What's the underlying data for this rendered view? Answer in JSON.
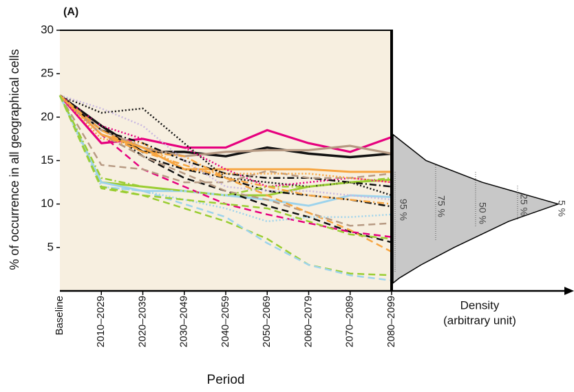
{
  "chart_data": {
    "type": "line",
    "title": "(A)",
    "y_label": "% of occurrence in all geographical cells",
    "x_label": "Period",
    "density_label": [
      "Density",
      "(arbitrary unit)"
    ],
    "density_percentiles": [
      "95 %",
      "75 %",
      "50 %",
      "25 %",
      "5 %"
    ],
    "categories": [
      "Baseline",
      "2010–2029",
      "2020–2039",
      "2030–2049",
      "2040–2059",
      "2050–2069",
      "2060–2079",
      "2070–2089",
      "2080–2099"
    ],
    "ylim": [
      0,
      30
    ],
    "yticks": [
      5,
      10,
      15,
      20,
      25,
      30
    ],
    "background": "#f7efe0",
    "density_y": [
      0.9,
      1.5,
      3,
      5,
      8,
      10,
      12.5,
      15,
      18
    ],
    "density": [
      0,
      0.04,
      0.17,
      0.37,
      0.7,
      1,
      0.54,
      0.2,
      0
    ],
    "density_color": "#c8c8c8",
    "series": [
      {
        "color": "#e6007e",
        "dash": "solid",
        "width": 3.2,
        "values": [
          22.5,
          17,
          17.5,
          16.5,
          16.5,
          18.5,
          17,
          16,
          17.7
        ]
      },
      {
        "color": "#111111",
        "dash": "solid",
        "width": 3.5,
        "values": [
          22.5,
          19,
          16,
          16,
          15.5,
          16.5,
          15.8,
          15.4,
          15.8
        ]
      },
      {
        "color": "#b79a83",
        "dash": "solid",
        "width": 3.2,
        "values": [
          22.5,
          18.5,
          16.5,
          15.5,
          16,
          16.2,
          16.2,
          16.7,
          15.8
        ]
      },
      {
        "color": "#f7a540",
        "dash": "solid",
        "width": 3,
        "values": [
          22.5,
          18,
          16.5,
          14,
          14,
          14,
          14,
          13.7,
          13.7
        ]
      },
      {
        "color": "#9acd32",
        "dash": "solid",
        "width": 3,
        "values": [
          22.5,
          12.5,
          12,
          11.5,
          11,
          11,
          12,
          12.5,
          12.8
        ]
      },
      {
        "color": "#9dd3ec",
        "dash": "solid",
        "width": 3,
        "values": [
          22.5,
          12.5,
          11.5,
          11.5,
          11,
          10.5,
          9.8,
          11,
          10.8
        ]
      },
      {
        "color": "#111111",
        "dash": "dotted",
        "width": 2.5,
        "values": [
          22.5,
          20.5,
          21,
          17,
          13,
          12.5,
          12,
          12.5,
          11
        ]
      },
      {
        "color": "#e6007e",
        "dash": "dotted",
        "width": 2.5,
        "values": [
          22.5,
          19,
          17.5,
          16.5,
          14,
          12,
          12.5,
          13,
          12.5
        ]
      },
      {
        "color": "#111111",
        "dash": "dashdot",
        "width": 2.5,
        "values": [
          22.5,
          18.5,
          17,
          15,
          13.5,
          13,
          13,
          12.5,
          12
        ]
      },
      {
        "color": "#111111",
        "dash": "dashdot",
        "width": 2.5,
        "values": [
          22.5,
          19,
          15.5,
          14,
          13,
          11.5,
          11,
          10.5,
          9.7
        ]
      },
      {
        "color": "#111111",
        "dash": "dashed",
        "width": 2.5,
        "values": [
          22.5,
          18,
          15.5,
          13,
          11.5,
          9.8,
          8.5,
          6.8,
          5.6
        ]
      },
      {
        "color": "#e6007e",
        "dash": "dashed",
        "width": 2.5,
        "values": [
          22.5,
          18,
          14,
          12,
          10,
          8.8,
          7.8,
          6.8,
          6.2
        ]
      },
      {
        "color": "#b79a83",
        "dash": "dashed",
        "width": 2.5,
        "values": [
          22.5,
          14.5,
          14,
          12.5,
          12.5,
          13.8,
          13,
          13,
          13.5
        ]
      },
      {
        "color": "#b79a83",
        "dash": "dashed",
        "width": 2.5,
        "values": [
          22.5,
          18,
          15.5,
          13.5,
          11.5,
          10.5,
          9,
          7.5,
          7.8
        ]
      },
      {
        "color": "#f7a540",
        "dash": "dashed",
        "width": 2.5,
        "values": [
          22.5,
          18.5,
          16,
          14.5,
          13,
          11,
          9,
          7,
          4.5
        ]
      },
      {
        "color": "#9acd32",
        "dash": "dashed",
        "width": 2.5,
        "values": [
          22.5,
          11.8,
          11,
          9.5,
          8,
          6,
          3,
          2,
          1.8
        ]
      },
      {
        "color": "#9dd3ec",
        "dash": "dashed",
        "width": 2.5,
        "values": [
          22.5,
          12,
          11.5,
          10,
          8.5,
          5.5,
          3,
          1.8,
          1.2
        ]
      },
      {
        "color": "#c9b8e0",
        "dash": "dotted",
        "width": 2.5,
        "values": [
          22.5,
          21,
          19,
          15,
          12,
          11.5,
          11.5,
          11,
          10.5
        ]
      },
      {
        "color": "#f7a540",
        "dash": "dotted",
        "width": 2.5,
        "values": [
          22.5,
          17.5,
          17,
          14,
          13.5,
          13.5,
          13.5,
          13,
          12.5
        ]
      },
      {
        "color": "#9dd3ec",
        "dash": "dotted",
        "width": 2.5,
        "values": [
          22.5,
          12,
          11.5,
          10.5,
          9.5,
          8,
          8.5,
          8.5,
          8.8
        ]
      },
      {
        "color": "#9acd32",
        "dash": "dashdot",
        "width": 2.5,
        "values": [
          22.5,
          13,
          12,
          11.5,
          11,
          12,
          12,
          12.5,
          13
        ]
      },
      {
        "color": "#f7a540",
        "dash": "dashdot",
        "width": 2.5,
        "values": [
          22.5,
          18,
          16,
          15.5,
          13,
          12,
          11,
          10.5,
          10
        ]
      },
      {
        "color": "#9acd32",
        "dash": "dashed",
        "width": 2.5,
        "values": [
          22.5,
          12,
          11,
          10.5,
          10,
          9.5,
          8,
          6.5,
          6
        ]
      }
    ]
  }
}
